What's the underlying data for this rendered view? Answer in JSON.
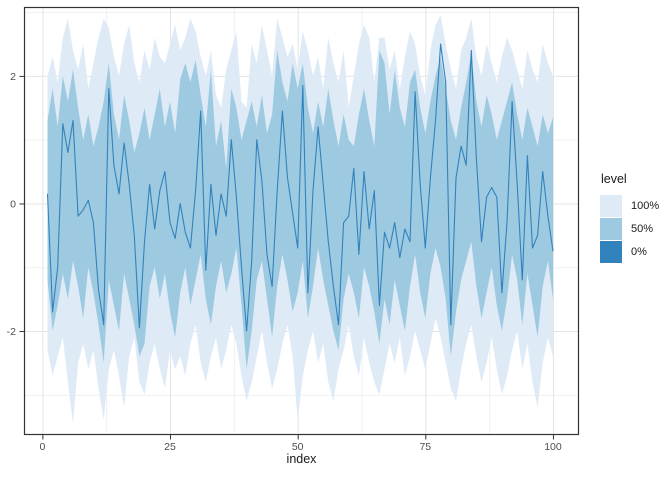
{
  "style": {
    "background": "#FFFFFF",
    "panel_border": "#333333",
    "grid_major": "#E4E4E4",
    "grid_minor": "#F0F0F0",
    "tick_mark": "#333333",
    "tick_label": "#4D4D4D",
    "text": "#1A1A1A"
  },
  "legend": {
    "title": "level",
    "items": [
      {
        "label": "100%",
        "color": "#DEEBF7"
      },
      {
        "label": "50%",
        "color": "#9ECAE1"
      },
      {
        "label": "0%",
        "color": "#3182BD"
      }
    ]
  },
  "chart_data": {
    "type": "area",
    "title": "",
    "xlabel": "index",
    "ylabel": "",
    "legend_title": "level",
    "legend_position": "right",
    "grid": true,
    "xlim": [
      -3.6,
      105.1
    ],
    "ylim": [
      -3.63,
      3.08
    ],
    "x_ticks": [
      0,
      25,
      50,
      75,
      100
    ],
    "x_minor_ticks": [
      12.5,
      37.5,
      62.5,
      87.5
    ],
    "y_ticks": [
      -2,
      0,
      2
    ],
    "y_minor_ticks": [
      -3,
      -1,
      1,
      3
    ],
    "x": [
      1,
      2,
      3,
      4,
      5,
      6,
      7,
      8,
      9,
      10,
      11,
      12,
      13,
      14,
      15,
      16,
      17,
      18,
      19,
      20,
      21,
      22,
      23,
      24,
      25,
      26,
      27,
      28,
      29,
      30,
      31,
      32,
      33,
      34,
      35,
      36,
      37,
      38,
      39,
      40,
      41,
      42,
      43,
      44,
      45,
      46,
      47,
      48,
      49,
      50,
      51,
      52,
      53,
      54,
      55,
      56,
      57,
      58,
      59,
      60,
      61,
      62,
      63,
      64,
      65,
      66,
      67,
      68,
      69,
      70,
      71,
      72,
      73,
      74,
      75,
      76,
      77,
      78,
      79,
      80,
      81,
      82,
      83,
      84,
      85,
      86,
      87,
      88,
      89,
      90,
      91,
      92,
      93,
      94,
      95,
      96,
      97,
      98,
      99,
      100
    ],
    "bands": [
      {
        "level": "100%",
        "fill": "#DEEBF7",
        "upper": [
          2.0,
          2.3,
          1.9,
          2.6,
          2.9,
          2.4,
          2.1,
          2.5,
          1.8,
          2.2,
          2.6,
          2.9,
          2.75,
          2.3,
          2.0,
          2.5,
          2.8,
          2.2,
          1.9,
          2.4,
          2.1,
          2.6,
          2.3,
          2.2,
          2.5,
          2.8,
          2.4,
          2.6,
          2.9,
          2.7,
          2.3,
          2.0,
          2.4,
          1.7,
          1.5,
          2.1,
          2.4,
          2.7,
          1.6,
          1.5,
          2.5,
          2.2,
          2.8,
          2.4,
          2.0,
          2.9,
          2.6,
          2.3,
          2.5,
          2.1,
          2.7,
          2.4,
          2.0,
          2.3,
          1.8,
          2.6,
          2.2,
          1.9,
          2.4,
          1.5,
          2.0,
          2.5,
          2.8,
          2.6,
          1.9,
          2.6,
          2.6,
          2.1,
          2.4,
          1.8,
          2.3,
          2.7,
          2.5,
          2.0,
          1.7,
          2.4,
          2.8,
          2.95,
          2.5,
          2.1,
          1.8,
          2.4,
          2.6,
          2.9,
          2.3,
          2.0,
          2.5,
          2.2,
          1.9,
          2.3,
          2.6,
          2.4,
          2.1,
          1.8,
          2.4,
          2.1,
          1.9,
          2.5,
          2.2,
          2.0
        ],
        "lower": [
          -2.3,
          -2.7,
          -2.4,
          -2.1,
          -2.8,
          -3.45,
          -2.5,
          -2.2,
          -2.6,
          -2.3,
          -2.9,
          -3.4,
          -2.6,
          -2.3,
          -2.7,
          -3.2,
          -2.4,
          -2.1,
          -2.8,
          -3.0,
          -2.5,
          -2.2,
          -2.6,
          -2.9,
          -2.3,
          -2.6,
          -2.4,
          -2.7,
          -2.2,
          -1.9,
          -2.5,
          -2.8,
          -2.4,
          -2.1,
          -2.6,
          -2.3,
          -1.9,
          -2.2,
          -2.7,
          -3.1,
          -2.8,
          -2.4,
          -2.0,
          -2.5,
          -2.9,
          -2.6,
          -2.2,
          -1.9,
          -2.4,
          -3.4,
          -2.7,
          -2.3,
          -2.0,
          -2.5,
          -2.2,
          -2.8,
          -3.1,
          -2.6,
          -2.3,
          -1.9,
          -2.4,
          -2.7,
          -2.1,
          -2.5,
          -2.8,
          -3.0,
          -2.6,
          -2.2,
          -2.5,
          -2.1,
          -2.7,
          -2.4,
          -2.0,
          -2.3,
          -2.6,
          -2.2,
          -1.8,
          -2.1,
          -2.5,
          -2.9,
          -3.1,
          -2.6,
          -2.2,
          -1.9,
          -2.4,
          -2.8,
          -2.5,
          -2.1,
          -2.6,
          -3.0,
          -2.7,
          -2.3,
          -2.0,
          -2.6,
          -2.2,
          -2.8,
          -3.2,
          -2.5,
          -2.1,
          -2.4
        ]
      },
      {
        "level": "50%",
        "fill": "#9ECAE1",
        "upper": [
          1.3,
          1.8,
          1.2,
          2.0,
          1.6,
          2.1,
          1.5,
          1.0,
          1.4,
          0.9,
          1.2,
          1.6,
          2.2,
          1.4,
          1.0,
          1.7,
          1.3,
          0.8,
          1.1,
          1.5,
          1.0,
          1.4,
          1.8,
          1.2,
          1.6,
          1.1,
          1.95,
          2.2,
          1.9,
          2.25,
          1.7,
          1.2,
          2.1,
          0.9,
          1.3,
          0.55,
          1.8,
          1.5,
          1.0,
          1.3,
          1.6,
          1.2,
          1.7,
          1.1,
          1.4,
          2.4,
          1.9,
          1.6,
          2.2,
          1.8,
          2.2,
          1.5,
          1.1,
          1.6,
          1.2,
          1.8,
          1.3,
          0.9,
          1.4,
          1.0,
          0.9,
          1.4,
          1.8,
          1.3,
          0.9,
          2.4,
          2.2,
          1.4,
          2.1,
          1.5,
          1.2,
          1.9,
          2.1,
          1.5,
          1.1,
          1.6,
          2.0,
          2.3,
          1.8,
          1.3,
          1.0,
          1.5,
          1.9,
          2.35,
          1.6,
          1.2,
          1.7,
          1.4,
          1.0,
          1.3,
          1.6,
          1.9,
          1.4,
          1.0,
          1.5,
          1.2,
          0.9,
          1.4,
          1.1,
          1.35
        ],
        "lower": [
          -1.2,
          -2.0,
          -1.6,
          -1.1,
          -1.5,
          -0.9,
          -1.3,
          -1.8,
          -1.0,
          -1.4,
          -1.9,
          -2.5,
          -1.2,
          -1.6,
          -2.0,
          -1.1,
          -1.5,
          -1.9,
          -2.4,
          -2.2,
          -1.3,
          -1.0,
          -1.5,
          -1.1,
          -1.7,
          -2.1,
          -1.4,
          -1.0,
          -1.6,
          -1.2,
          -0.8,
          -1.5,
          -1.9,
          -1.3,
          -0.9,
          -1.4,
          -1.1,
          -0.7,
          -1.6,
          -2.6,
          -2.0,
          -1.2,
          -0.9,
          -1.5,
          -2.1,
          -1.3,
          -0.8,
          -1.2,
          -1.7,
          -1.4,
          -0.9,
          -1.8,
          -1.3,
          -0.7,
          -1.2,
          -1.6,
          -2.0,
          -2.3,
          -1.5,
          -1.1,
          -1.4,
          -1.8,
          -1.0,
          -1.3,
          -1.7,
          -2.2,
          -1.5,
          -1.9,
          -1.2,
          -1.6,
          -2.0,
          -1.3,
          -0.8,
          -1.4,
          -1.8,
          -1.1,
          -0.7,
          -1.0,
          -1.5,
          -2.4,
          -1.7,
          -1.2,
          -0.9,
          -0.6,
          -1.3,
          -1.8,
          -1.4,
          -1.0,
          -1.6,
          -2.0,
          -1.5,
          -0.8,
          -1.2,
          -1.9,
          -1.1,
          -1.6,
          -2.1,
          -1.3,
          -0.9,
          -1.5
        ]
      }
    ],
    "line": {
      "level": "0%",
      "color": "#3182BD",
      "values": [
        0.15,
        -1.7,
        -1.0,
        1.25,
        0.8,
        1.3,
        -0.2,
        -0.1,
        0.05,
        -0.3,
        -1.35,
        -1.9,
        1.8,
        0.6,
        0.15,
        0.95,
        0.3,
        -0.5,
        -1.95,
        -0.6,
        0.3,
        -0.4,
        0.2,
        0.5,
        -0.3,
        -0.55,
        0.0,
        -0.45,
        -0.7,
        0.2,
        1.45,
        -1.05,
        0.3,
        -0.5,
        0.15,
        -0.2,
        1.0,
        0.1,
        -1.0,
        -2.0,
        -0.9,
        1.0,
        0.35,
        -0.8,
        -1.3,
        0.2,
        1.45,
        0.4,
        -0.15,
        -0.7,
        1.85,
        -1.4,
        0.2,
        1.2,
        0.3,
        -0.6,
        -1.3,
        -1.9,
        -0.3,
        -0.2,
        0.55,
        -0.8,
        0.5,
        -0.4,
        0.2,
        -1.6,
        -0.45,
        -0.7,
        -0.3,
        -0.85,
        -0.4,
        -0.6,
        1.75,
        0.3,
        -0.7,
        0.4,
        1.3,
        2.5,
        1.9,
        -1.9,
        0.4,
        0.9,
        0.6,
        2.4,
        0.7,
        -0.6,
        0.1,
        0.25,
        0.1,
        -1.4,
        -0.3,
        1.6,
        0.3,
        -1.2,
        0.75,
        -0.7,
        -0.5,
        0.5,
        -0.2,
        -0.75
      ]
    }
  }
}
